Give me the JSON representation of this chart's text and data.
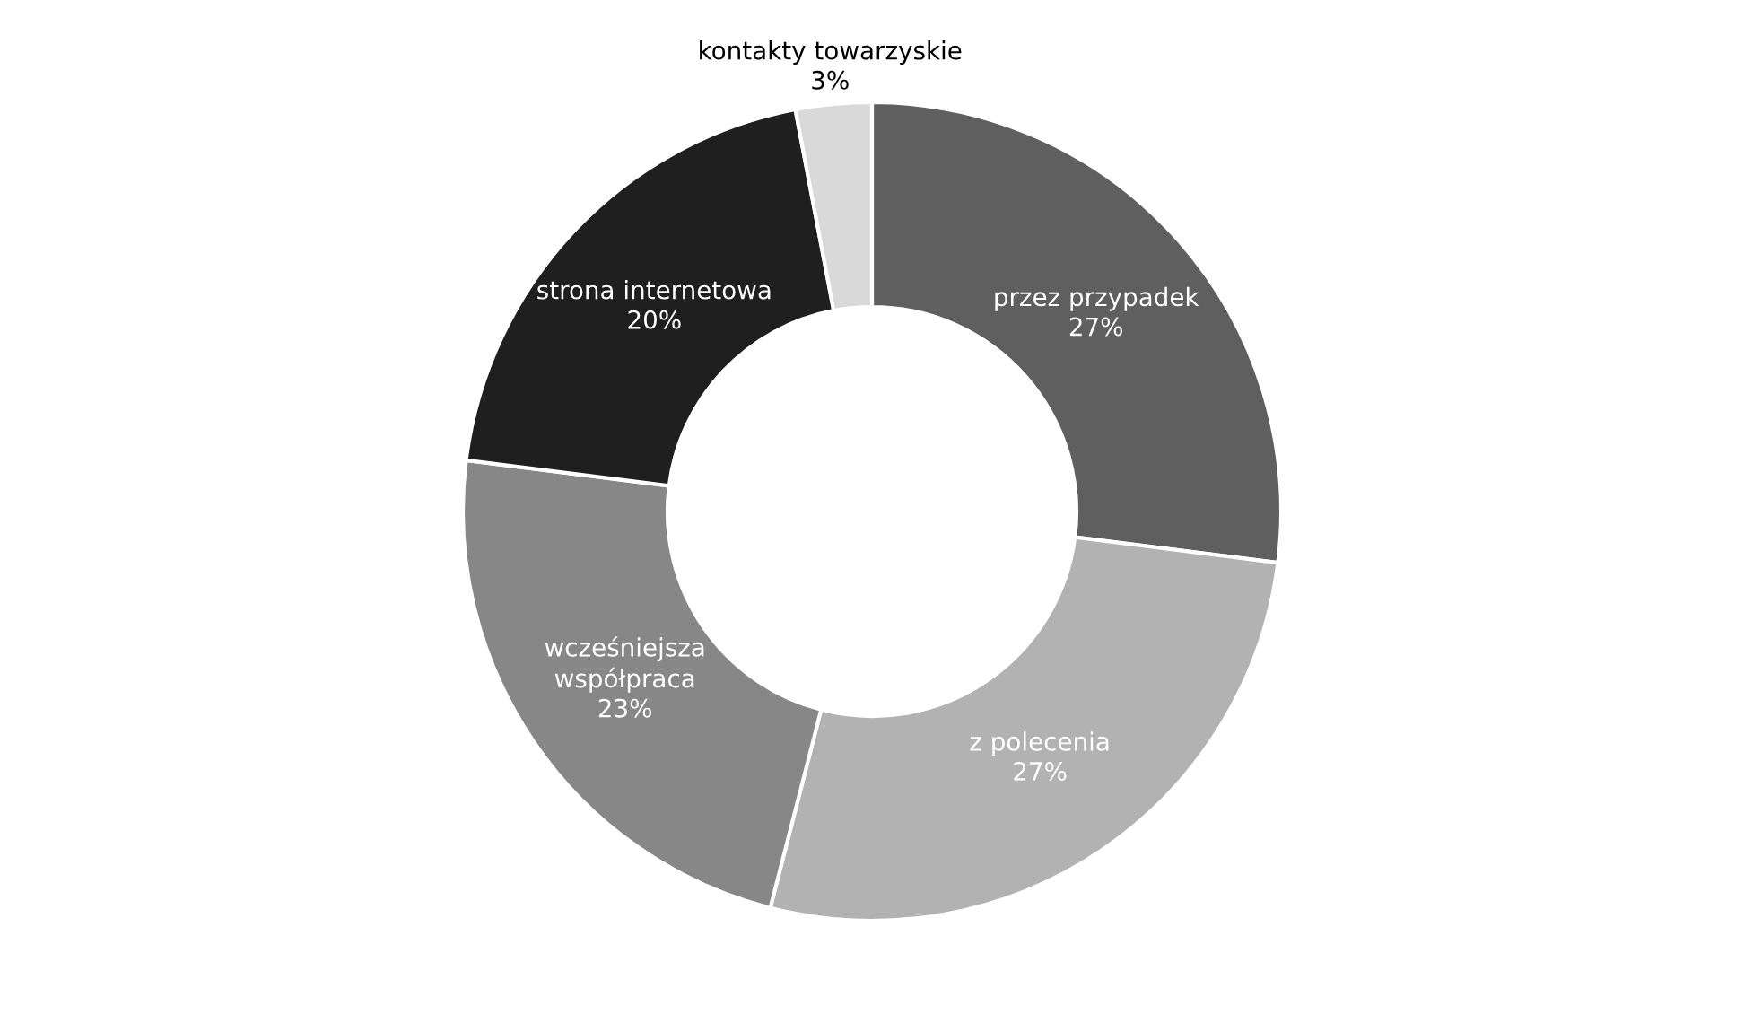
{
  "chart_data": {
    "type": "donut",
    "categories": [
      "przez przypadek",
      "z polecenia",
      "wcześniejsza\nwspółpraca",
      "strona internetowa",
      "kontakty towarzyskie"
    ],
    "values": [
      27,
      27,
      23,
      20,
      3
    ],
    "colors": [
      "#5f5f5f",
      "#b2b2b2",
      "#878787",
      "#1f1f1f",
      "#d9d9d9"
    ],
    "value_labels": [
      "27%",
      "27%",
      "23%",
      "20%",
      "3%"
    ]
  }
}
